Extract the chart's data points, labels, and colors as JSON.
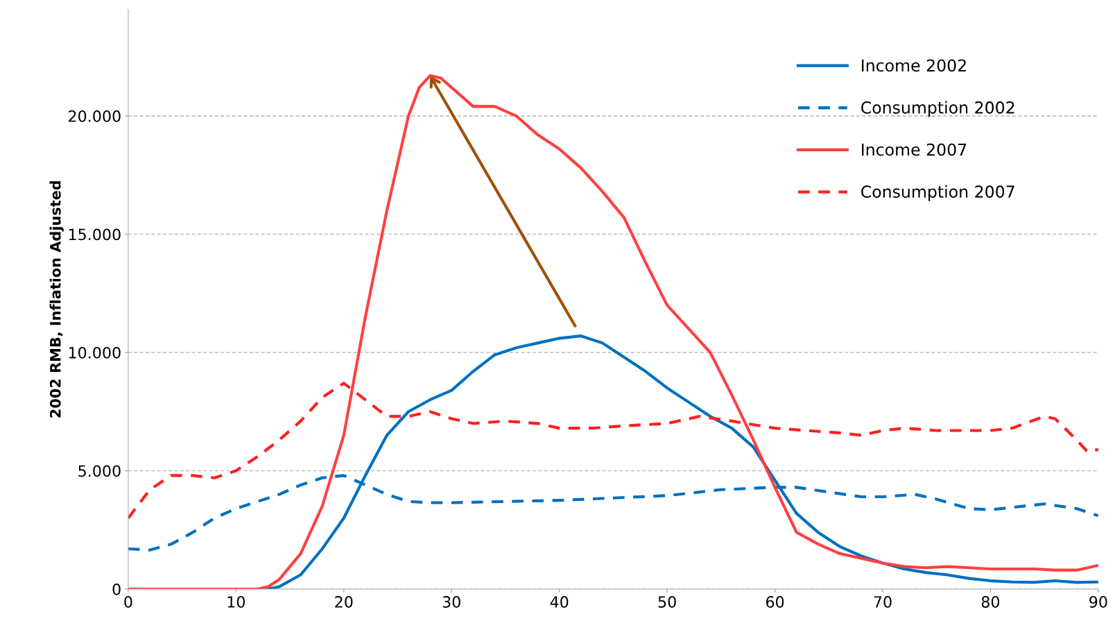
{
  "chart_data": {
    "type": "line",
    "ylabel": "2002 RMB, Inflation Adjusted",
    "xlim": [
      0,
      90
    ],
    "xticks": [
      0,
      10,
      20,
      30,
      40,
      50,
      60,
      70,
      80,
      90
    ],
    "ylim": [
      0,
      24500
    ],
    "yticks": [
      0,
      {
        "value": 5000,
        "label": "5.000"
      },
      {
        "value": 10000,
        "label": "10.000"
      },
      {
        "value": 15000,
        "label": "15.000"
      },
      {
        "value": 20000,
        "label": "20.000"
      }
    ],
    "grid": "y",
    "legend": "top right",
    "marker": "none",
    "series": [
      {
        "name": "Income 2002",
        "color": "#0070c0",
        "line_style": "solid",
        "x": [
          0,
          13,
          14,
          16,
          18,
          20,
          22,
          24,
          26,
          28,
          30,
          32,
          34,
          36,
          38,
          40,
          42,
          44,
          46,
          48,
          50,
          52,
          54,
          56,
          58,
          60,
          62,
          64,
          66,
          68,
          70,
          72,
          74,
          76,
          78,
          80,
          82,
          84,
          86,
          88,
          90
        ],
        "values": [
          0,
          0,
          100,
          600,
          1700,
          3000,
          4800,
          6500,
          7500,
          8000,
          8400,
          9200,
          9900,
          10200,
          10400,
          10600,
          10700,
          10400,
          9800,
          9200,
          8500,
          7900,
          7300,
          6800,
          6000,
          4600,
          3200,
          2400,
          1800,
          1400,
          1100,
          850,
          700,
          600,
          450,
          350,
          300,
          280,
          350,
          280,
          300
        ]
      },
      {
        "name": "Consumption 2002",
        "color": "#0070c0",
        "line_style": "dashed",
        "x": [
          0,
          2,
          4,
          6,
          8,
          10,
          12,
          14,
          16,
          18,
          20,
          22,
          24,
          26,
          28,
          30,
          35,
          40,
          45,
          50,
          55,
          60,
          62,
          65,
          68,
          70,
          73,
          75,
          78,
          80,
          83,
          85,
          88,
          90
        ],
        "values": [
          1700,
          1650,
          1900,
          2400,
          3000,
          3400,
          3700,
          4000,
          4400,
          4700,
          4800,
          4400,
          4000,
          3700,
          3650,
          3650,
          3700,
          3750,
          3850,
          3950,
          4200,
          4300,
          4300,
          4100,
          3900,
          3900,
          4000,
          3800,
          3400,
          3350,
          3500,
          3600,
          3400,
          3100
        ]
      },
      {
        "name": "Income 2007",
        "color": "#ff4040",
        "line_style": "solid",
        "x": [
          0,
          12,
          13,
          14,
          16,
          18,
          20,
          22,
          24,
          26,
          27,
          28,
          29,
          30,
          32,
          34,
          36,
          38,
          40,
          42,
          44,
          46,
          48,
          50,
          52,
          54,
          56,
          58,
          60,
          62,
          64,
          66,
          68,
          70,
          72,
          74,
          76,
          78,
          80,
          82,
          84,
          86,
          88,
          90
        ],
        "values": [
          0,
          0,
          100,
          400,
          1500,
          3500,
          6500,
          11500,
          16000,
          20000,
          21200,
          21700,
          21600,
          21200,
          20400,
          20400,
          20000,
          19200,
          18600,
          17800,
          16800,
          15700,
          13800,
          12000,
          11000,
          10000,
          8200,
          6300,
          4300,
          2400,
          1900,
          1500,
          1300,
          1100,
          950,
          900,
          950,
          900,
          850,
          850,
          850,
          800,
          800,
          1000
        ]
      },
      {
        "name": "Consumption 2007",
        "color": "#ff2020",
        "line_style": "dashed",
        "x": [
          0,
          2,
          4,
          6,
          8,
          10,
          12,
          14,
          16,
          18,
          20,
          22,
          24,
          26,
          28,
          30,
          32,
          35,
          38,
          40,
          43,
          46,
          50,
          53,
          56,
          60,
          63,
          66,
          68,
          70,
          72,
          75,
          78,
          80,
          82,
          85,
          86,
          88,
          89,
          90
        ],
        "values": [
          3000,
          4200,
          4800,
          4800,
          4700,
          5000,
          5600,
          6300,
          7100,
          8100,
          8700,
          8000,
          7300,
          7300,
          7500,
          7200,
          7000,
          7100,
          7000,
          6800,
          6800,
          6900,
          7000,
          7300,
          7100,
          6800,
          6700,
          6600,
          6500,
          6700,
          6800,
          6700,
          6700,
          6700,
          6800,
          7300,
          7200,
          6300,
          5800,
          5900
        ]
      }
    ]
  }
}
